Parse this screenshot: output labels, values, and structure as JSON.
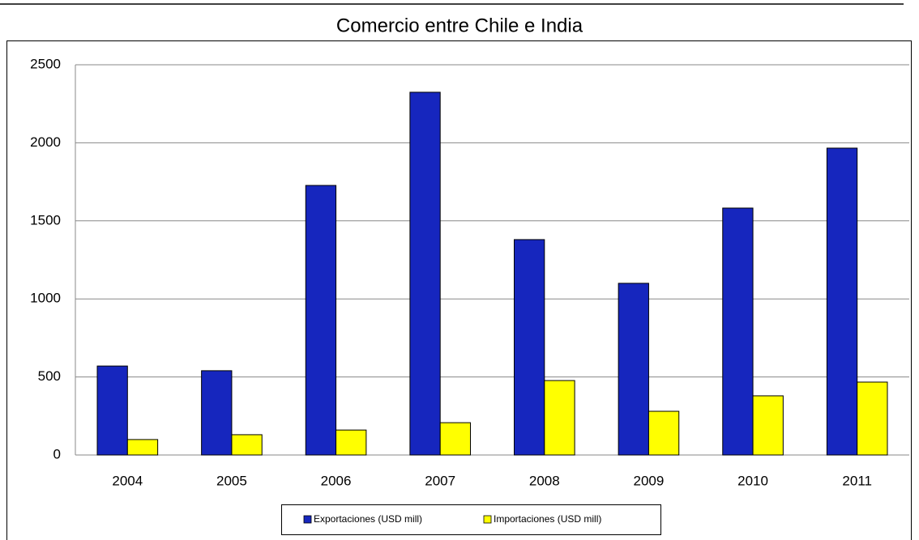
{
  "chart_data": {
    "type": "bar",
    "title": "Comercio entre Chile e India",
    "categories": [
      "2004",
      "2005",
      "2006",
      "2007",
      "2008",
      "2009",
      "2010",
      "2011"
    ],
    "series": [
      {
        "name": "Exportaciones (USD mill)",
        "color": "#1626be",
        "values": [
          570,
          540,
          1727,
          2324,
          1380,
          1100,
          1582,
          1966
        ]
      },
      {
        "name": "Importaciones (USD mill)",
        "color": "#ffff00",
        "values": [
          99,
          130,
          160,
          207,
          477,
          280,
          379,
          467
        ]
      }
    ],
    "ylim": [
      0,
      2500
    ],
    "yticks": [
      0,
      500,
      1000,
      1500,
      2000,
      2500
    ],
    "grid": true,
    "legend": "bottom"
  }
}
